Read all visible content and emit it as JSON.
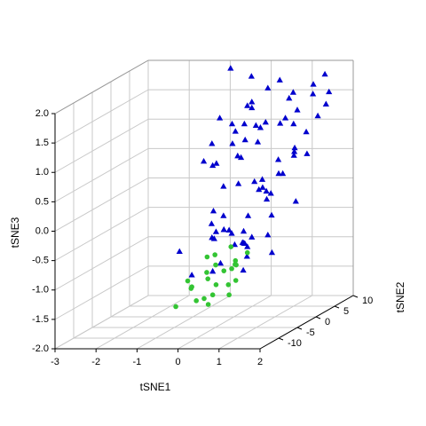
{
  "chart_data": {
    "type": "scatter3d",
    "xlabel": "tSNE1",
    "ylabel": "tSNE2",
    "zlabel": "tSNE3",
    "xlim": [
      -3,
      2
    ],
    "ylim": [
      -15,
      10
    ],
    "zlim": [
      -2,
      2
    ],
    "xticks": [
      -3,
      -2,
      -1,
      0,
      1,
      2
    ],
    "yticks": [
      -10,
      -5,
      0,
      5,
      10
    ],
    "zticks": [
      {
        "value": -2,
        "label": "-2.0"
      },
      {
        "value": -1.5,
        "label": "-1.5"
      },
      {
        "value": -1,
        "label": "-1.0"
      },
      {
        "value": -0.5,
        "label": "-0.5"
      },
      {
        "value": 0,
        "label": "0.0"
      },
      {
        "value": 0.5,
        "label": "0.5"
      },
      {
        "value": 1,
        "label": "1.0"
      },
      {
        "value": 1.5,
        "label": "1.5"
      },
      {
        "value": 2,
        "label": "2.0"
      }
    ],
    "grid": true,
    "series": [
      {
        "marker": "triangle",
        "color": "#0000cd",
        "x": [
          0.2,
          0.5,
          -0.3,
          1.1,
          0.8,
          -0.6,
          0.0,
          1.4,
          0.3,
          -0.9,
          0.7,
          1.2,
          -0.2,
          0.4,
          0.9,
          -0.5,
          1.6,
          0.1,
          0.6,
          -0.1,
          1.0,
          0.3,
          -0.7,
          0.8,
          1.3,
          0.5,
          -0.4,
          0.2,
          1.5,
          0.0,
          0.7,
          -0.8,
          1.1,
          0.4,
          -0.3,
          0.9,
          1.7,
          0.2,
          0.6,
          -0.6,
          1.2,
          0.1,
          0.8,
          -0.2,
          0.5,
          1.4,
          -1.1,
          0.3,
          1.0,
          0.6,
          -0.4,
          0.9,
          0.2,
          1.3,
          -0.1,
          0.7,
          0.4,
          1.1,
          -0.5,
          0.0,
          0.8,
          1.5,
          0.3,
          -0.3,
          0.6,
          1.0,
          0.2,
          -0.7,
          1.2,
          0.5,
          0.9,
          -0.2,
          0.4,
          1.6,
          0.1,
          0.7,
          -0.9,
          1.1,
          0.3,
          0.8
        ],
        "y": [
          -5,
          3,
          8,
          -2,
          6,
          -8,
          1,
          4,
          -6,
          9,
          0,
          -3,
          7,
          2,
          -7,
          5,
          -1,
          8,
          -4,
          3,
          6,
          -9,
          2,
          -5,
          7,
          0,
          4,
          -2,
          9,
          -6,
          1,
          5,
          -3,
          8,
          -8,
          2,
          6,
          -1,
          -4,
          7,
          3,
          -7,
          0,
          5,
          -2,
          9,
          4,
          -6,
          1,
          -3,
          8,
          6,
          -5,
          2,
          7,
          -1,
          -8,
          4,
          0,
          3,
          -4,
          6,
          9,
          -2,
          1,
          5,
          -7,
          3,
          8,
          -3,
          0,
          7,
          -5,
          2,
          6,
          -9,
          4,
          1,
          -1,
          5
        ],
        "z": [
          0.4,
          1.2,
          1.8,
          -0.2,
          1.5,
          -0.6,
          0.7,
          1.0,
          -0.3,
          1.9,
          0.2,
          -0.8,
          1.4,
          0.9,
          -0.5,
          1.1,
          0.0,
          1.6,
          -0.4,
          0.6,
          1.3,
          -0.9,
          0.5,
          -0.1,
          1.7,
          0.3,
          0.8,
          -0.7,
          1.5,
          -0.2,
          0.1,
          1.2,
          -0.5,
          1.0,
          -1.0,
          0.6,
          1.4,
          0.3,
          -0.6,
          0.9,
          0.7,
          -0.4,
          0.0,
          1.1,
          -0.9,
          1.8,
          0.5,
          -0.3,
          0.4,
          -0.7,
          1.3,
          1.6,
          -0.1,
          0.8,
          1.0,
          0.2,
          -0.8,
          0.6,
          -0.2,
          0.9,
          -0.5,
          1.2,
          1.7,
          -0.6,
          0.3,
          1.1,
          -0.3,
          0.5,
          1.5,
          -1.1,
          0.1,
          1.3,
          -0.4,
          0.7,
          1.0,
          -0.2,
          0.8,
          0.4,
          -0.7,
          1.2
        ]
      },
      {
        "marker": "circle",
        "color": "#33c433",
        "x": [
          -0.4,
          0.1,
          0.3,
          -0.1,
          0.5,
          0.2,
          -0.6,
          0.4,
          0.0,
          0.6,
          -0.3,
          0.2,
          0.7,
          -0.2,
          0.3,
          0.1,
          -0.5,
          0.4,
          0.0,
          0.5,
          -0.1,
          0.3,
          0.6,
          -0.3
        ],
        "y": [
          -8,
          -6,
          -9,
          -4,
          -7,
          -3,
          -9,
          -5,
          -8,
          -6,
          -4,
          -7,
          -9,
          -5,
          -3,
          -8,
          -6,
          -4,
          -7,
          -5,
          -9,
          -6,
          -3,
          -8
        ],
        "z": [
          -1.1,
          -0.9,
          -1.3,
          -0.8,
          -1.2,
          -0.7,
          -1.5,
          -1.0,
          -1.4,
          -0.9,
          -1.1,
          -1.2,
          -1.3,
          -0.8,
          -1.0,
          -1.5,
          -1.3,
          -0.9,
          -1.1,
          -1.2,
          -1.4,
          -1.0,
          -0.8,
          -1.2
        ]
      }
    ]
  }
}
